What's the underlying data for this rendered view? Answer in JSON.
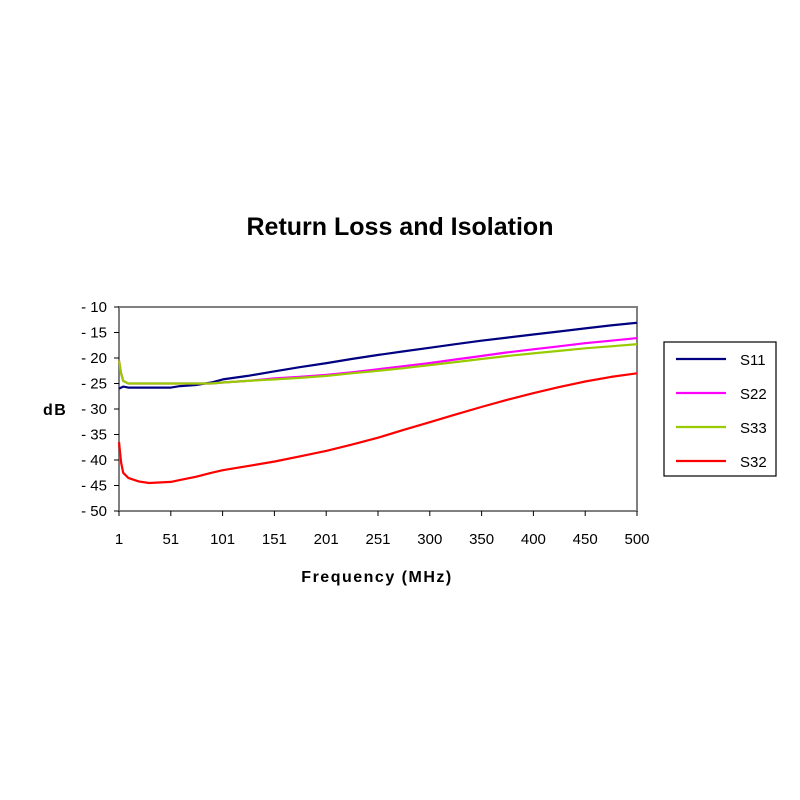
{
  "chart_data": {
    "type": "line",
    "title": "Return Loss and Isolation",
    "xlabel": "Frequency (MHz)",
    "ylabel": "dB",
    "x_ticks": [
      "1",
      "51",
      "101",
      "151",
      "201",
      "251",
      "300",
      "350",
      "400",
      "450",
      "500"
    ],
    "y_ticks": [
      "-10",
      "-15",
      "-20",
      "-25",
      "-30",
      "-35",
      "-40",
      "-45",
      "-50"
    ],
    "xlim": [
      1,
      500
    ],
    "ylim": [
      -50,
      -10
    ],
    "grid": false,
    "legend_position": "right",
    "x": [
      1,
      3,
      5,
      10,
      20,
      30,
      51,
      60,
      75,
      90,
      101,
      125,
      151,
      175,
      201,
      225,
      251,
      275,
      300,
      325,
      350,
      375,
      400,
      425,
      450,
      475,
      500
    ],
    "series": [
      {
        "name": "S11",
        "color": "#000080",
        "values": [
          -26,
          -25.8,
          -25.6,
          -25.8,
          -25.8,
          -25.8,
          -25.8,
          -25.5,
          -25.3,
          -24.8,
          -24.2,
          -23.5,
          -22.6,
          -21.8,
          -21,
          -20.2,
          -19.4,
          -18.7,
          -18,
          -17.3,
          -16.6,
          -16,
          -15.4,
          -14.8,
          -14.2,
          -13.6,
          -13.1
        ]
      },
      {
        "name": "S22",
        "color": "#ff00ff",
        "values": [
          -20.5,
          -23,
          -24.5,
          -25,
          -25,
          -25,
          -25,
          -25,
          -25,
          -25,
          -24.8,
          -24.5,
          -24,
          -23.7,
          -23.3,
          -22.8,
          -22.2,
          -21.6,
          -21,
          -20.3,
          -19.6,
          -18.9,
          -18.3,
          -17.7,
          -17.1,
          -16.6,
          -16.1
        ]
      },
      {
        "name": "S33",
        "color": "#99cc00",
        "values": [
          -20.5,
          -23,
          -24.5,
          -25,
          -25,
          -25,
          -25,
          -25,
          -25,
          -25,
          -24.8,
          -24.5,
          -24.2,
          -23.9,
          -23.5,
          -23,
          -22.5,
          -22,
          -21.4,
          -20.8,
          -20.2,
          -19.6,
          -19.1,
          -18.6,
          -18.1,
          -17.7,
          -17.3
        ]
      },
      {
        "name": "S32",
        "color": "#ff0000",
        "values": [
          -36.5,
          -40.5,
          -42.5,
          -43.5,
          -44.2,
          -44.5,
          -44.3,
          -43.9,
          -43.3,
          -42.5,
          -42,
          -41.2,
          -40.3,
          -39.3,
          -38.2,
          -37,
          -35.6,
          -34.1,
          -32.6,
          -31.1,
          -29.6,
          -28.2,
          -26.9,
          -25.7,
          -24.6,
          -23.7,
          -23
        ]
      }
    ]
  }
}
